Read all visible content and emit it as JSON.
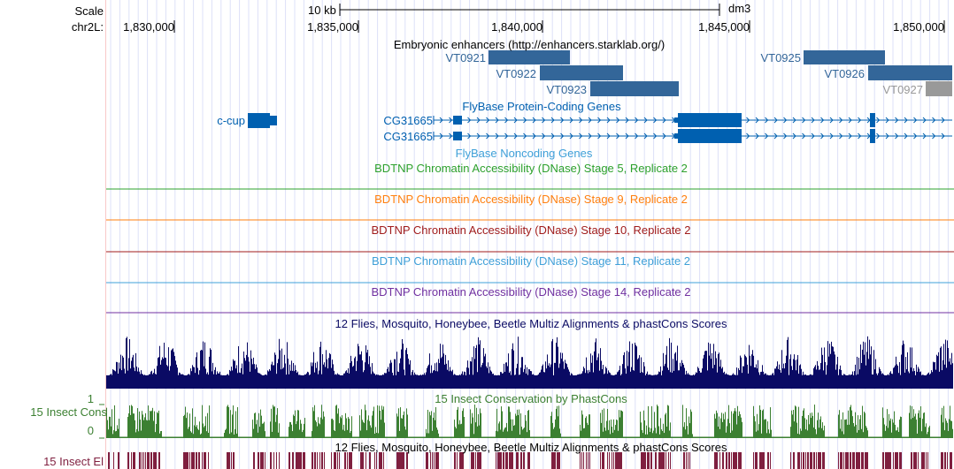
{
  "scale": {
    "label": "Scale",
    "bar_label": "10 kb",
    "assembly": "dm3"
  },
  "ruler": {
    "chrom_label": "chr2L:",
    "ticks": [
      "1,830,000",
      "1,835,000",
      "1,840,000",
      "1,845,000",
      "1,850,000"
    ]
  },
  "enhancers": {
    "title": "Embryonic enhancers (http://enhancers.starklab.org/)",
    "items": [
      {
        "name": "VT0921"
      },
      {
        "name": "VT0922"
      },
      {
        "name": "VT0923"
      },
      {
        "name": "VT0925"
      },
      {
        "name": "VT0926"
      },
      {
        "name": "VT0927"
      }
    ]
  },
  "genes": {
    "title": "FlyBase Protein-Coding Genes",
    "items": [
      "c-cup",
      "CG31665",
      "CG31665"
    ]
  },
  "noncoding": {
    "title": "FlyBase Noncoding Genes"
  },
  "dnase": [
    {
      "title": "BDTNP Chromatin Accessibility (DNase) Stage 5, Replicate 2",
      "color": "#2ca02c"
    },
    {
      "title": "BDTNP Chromatin Accessibility (DNase) Stage 9, Replicate 2",
      "color": "#ff7f0e"
    },
    {
      "title": "BDTNP Chromatin Accessibility (DNase) Stage 10, Replicate 2",
      "color": "#a01c1c"
    },
    {
      "title": "BDTNP Chromatin Accessibility (DNase) Stage 11, Replicate 2",
      "color": "#3fa0d8"
    },
    {
      "title": "BDTNP Chromatin Accessibility (DNase) Stage 14, Replicate 2",
      "color": "#7030a0"
    }
  ],
  "multiz": {
    "title": "12 Flies, Mosquito, Honeybee, Beetle Multiz Alignments & phastCons Scores",
    "color": "#0a0a64"
  },
  "cons": {
    "title": "15 Insect Conservation by PhastCons",
    "side_label": "15 Insect Cons",
    "ymax": "1",
    "ymin": "0",
    "color": "#3c8032"
  },
  "multiz2": {
    "title": "12 Flies, Mosquito, Honeybee, Beetle Multiz Alignments & phastCons Scores"
  },
  "elements": {
    "side_label": "15 Insect El",
    "color": "#7f1f3f"
  }
}
